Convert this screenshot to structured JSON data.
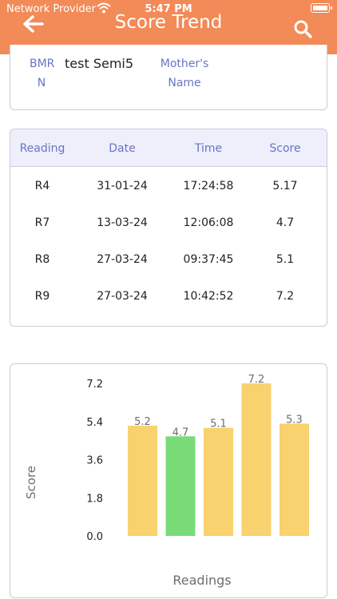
{
  "status_bar": {
    "carrier": "Network Provider",
    "time": "5:47 PM"
  },
  "header": {
    "title": "Score Trend",
    "back_icon": "arrow-left-icon",
    "search_icon": "search-icon",
    "background_color": "#f28b58"
  },
  "info": {
    "bmrn_label_line1": "BMR",
    "bmrn_label_line2": "N",
    "bmrn_value": "test Semi5",
    "mother_label_line1": "Mother's",
    "mother_label_line2": "Name"
  },
  "table": {
    "headers": [
      "Reading",
      "Date",
      "Time",
      "Score"
    ],
    "rows": [
      [
        "R4",
        "31-01-24",
        "17:24:58",
        "5.17"
      ],
      [
        "R7",
        "13-03-24",
        "12:06:08",
        "4.7"
      ],
      [
        "R8",
        "27-03-24",
        "09:37:45",
        "5.1"
      ],
      [
        "R9",
        "27-03-24",
        "10:42:52",
        "7.2"
      ]
    ]
  },
  "chart_data": {
    "type": "bar",
    "xlabel": "Readings",
    "ylabel": "Score",
    "ylim": [
      0,
      7.2
    ],
    "yticks": [
      "7.2",
      "5.4",
      "3.6",
      "1.8",
      "0.0"
    ],
    "ytick_values": [
      7.2,
      5.4,
      3.6,
      1.8,
      0
    ],
    "values": [
      5.2,
      4.7,
      5.1,
      7.2,
      5.3
    ],
    "value_labels": [
      "5.2",
      "4.7",
      "5.1",
      "7.2",
      "5.3"
    ],
    "bar_colors": [
      "#f8d26e",
      "#78db78",
      "#f8d26e",
      "#f8d26e",
      "#f8d26e"
    ],
    "grid": false
  }
}
